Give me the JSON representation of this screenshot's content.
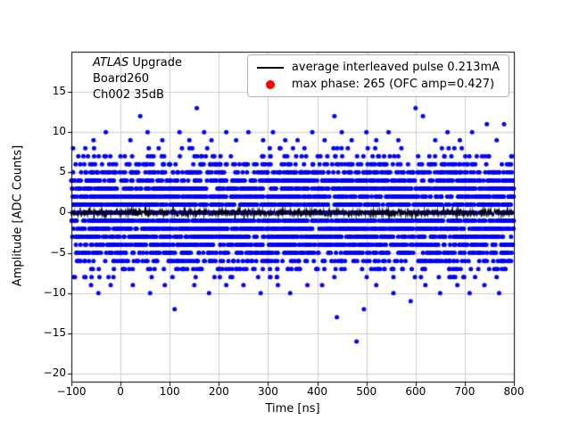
{
  "figure": {
    "annotation": {
      "brand": "ATLAS",
      "line1_rest": " Upgrade",
      "line2": "Board260",
      "line3": "Ch002 35dB"
    },
    "legend": {
      "items": [
        {
          "marker": "line",
          "color": "#000000",
          "label": "average interleaved pulse 0.213mA"
        },
        {
          "marker": "dot",
          "color": "#ff0000",
          "label": "max phase: 265 (OFC amp=0.427)"
        }
      ]
    }
  },
  "chart_data": {
    "type": "scatter",
    "title": "",
    "xlabel": "Time [ns]",
    "ylabel": "Amplitude [ADC Counts]",
    "xlim": [
      -100,
      800
    ],
    "ylim": [
      -21,
      20
    ],
    "xticks": [
      -100,
      0,
      100,
      200,
      300,
      400,
      500,
      600,
      700,
      800
    ],
    "yticks": [
      -20,
      -15,
      -10,
      -5,
      0,
      5,
      10,
      15
    ],
    "grid": true,
    "grid_color": "#cccccc",
    "legend_position": "upper right",
    "scatter": {
      "color": "#0000ff",
      "marker_px": 5,
      "seed": 42,
      "note": "ADC noise quantized at integer counts; count = approx dots per level across -100..800 ns",
      "levels": [
        {
          "y": 8,
          "count": 25
        },
        {
          "y": 7,
          "count": 65
        },
        {
          "y": 6,
          "count": 130
        },
        {
          "y": 5,
          "count": 220
        },
        {
          "y": 4,
          "count": 320
        },
        {
          "y": 3,
          "count": 380
        },
        {
          "y": 2,
          "count": 400
        },
        {
          "y": 1,
          "count": 410
        },
        {
          "y": 0,
          "count": 360
        },
        {
          "y": -1,
          "count": 410
        },
        {
          "y": -2,
          "count": 400
        },
        {
          "y": -3,
          "count": 380
        },
        {
          "y": -4,
          "count": 330
        },
        {
          "y": -5,
          "count": 240
        },
        {
          "y": -6,
          "count": 160
        },
        {
          "y": -7,
          "count": 90
        },
        {
          "y": -8,
          "count": 35
        }
      ],
      "outliers": [
        [
          -55,
          9
        ],
        [
          -30,
          10
        ],
        [
          20,
          9
        ],
        [
          40,
          12
        ],
        [
          55,
          10
        ],
        [
          85,
          9
        ],
        [
          120,
          10
        ],
        [
          140,
          9
        ],
        [
          155,
          13
        ],
        [
          170,
          10
        ],
        [
          185,
          9
        ],
        [
          215,
          10
        ],
        [
          235,
          9
        ],
        [
          260,
          10
        ],
        [
          290,
          9
        ],
        [
          310,
          10
        ],
        [
          335,
          9
        ],
        [
          360,
          9
        ],
        [
          390,
          10
        ],
        [
          415,
          9
        ],
        [
          435,
          12
        ],
        [
          450,
          10
        ],
        [
          470,
          9
        ],
        [
          500,
          10
        ],
        [
          520,
          9
        ],
        [
          545,
          10
        ],
        [
          565,
          9
        ],
        [
          600,
          13
        ],
        [
          615,
          12
        ],
        [
          640,
          9
        ],
        [
          665,
          10
        ],
        [
          690,
          9
        ],
        [
          715,
          10
        ],
        [
          745,
          11
        ],
        [
          765,
          9
        ],
        [
          780,
          11
        ],
        [
          -60,
          -9
        ],
        [
          -45,
          -10
        ],
        [
          -20,
          -9
        ],
        [
          25,
          -9
        ],
        [
          60,
          -10
        ],
        [
          90,
          -9
        ],
        [
          110,
          -12
        ],
        [
          150,
          -9
        ],
        [
          180,
          -10
        ],
        [
          215,
          -9
        ],
        [
          250,
          -9
        ],
        [
          285,
          -10
        ],
        [
          320,
          -9
        ],
        [
          345,
          -10
        ],
        [
          380,
          -9
        ],
        [
          410,
          -9
        ],
        [
          440,
          -13
        ],
        [
          480,
          -16
        ],
        [
          495,
          -12
        ],
        [
          520,
          -9
        ],
        [
          555,
          -10
        ],
        [
          590,
          -11
        ],
        [
          620,
          -9
        ],
        [
          650,
          -10
        ],
        [
          685,
          -9
        ],
        [
          710,
          -10
        ],
        [
          740,
          -9
        ],
        [
          770,
          -10
        ]
      ]
    },
    "average_line": {
      "color": "#000000",
      "y_mean": 0,
      "noise_amp": 0.45,
      "n_points": 900,
      "seed": 7
    }
  }
}
